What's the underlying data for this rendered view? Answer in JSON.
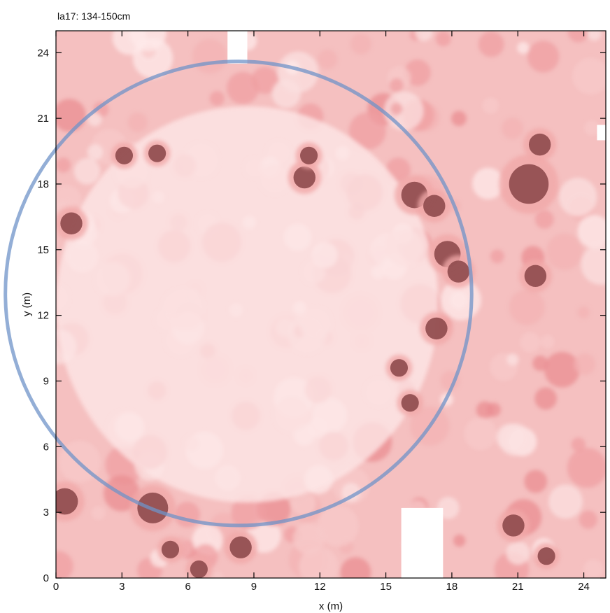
{
  "chart_data": {
    "type": "heatmap",
    "title": "la17: 134-150cm",
    "xlabel": "x (m)",
    "ylabel": "y (m)",
    "xlim": [
      0,
      25
    ],
    "ylim": [
      0,
      25
    ],
    "x_ticks": [
      0,
      3,
      6,
      9,
      12,
      15,
      18,
      21,
      24
    ],
    "y_ticks": [
      0,
      3,
      6,
      9,
      12,
      15,
      18,
      21,
      24
    ],
    "grid": false,
    "colors": {
      "low": "#fde6e6",
      "mid": "#f1a8a8",
      "high": "#a75558",
      "highest": "#8e4a4d",
      "nodata": "#ffffff",
      "circle": "#6f93c8"
    },
    "dark_features": [
      {
        "x": 11.3,
        "y": 18.3,
        "r": 0.5
      },
      {
        "x": 11.5,
        "y": 19.3,
        "r": 0.4
      },
      {
        "x": 21.5,
        "y": 18.0,
        "r": 0.9
      },
      {
        "x": 22.0,
        "y": 19.8,
        "r": 0.5
      },
      {
        "x": 17.8,
        "y": 14.8,
        "r": 0.6
      },
      {
        "x": 18.3,
        "y": 14.0,
        "r": 0.5
      },
      {
        "x": 21.8,
        "y": 13.8,
        "r": 0.5
      },
      {
        "x": 16.3,
        "y": 17.5,
        "r": 0.6
      },
      {
        "x": 17.2,
        "y": 17.0,
        "r": 0.5
      },
      {
        "x": 17.3,
        "y": 11.4,
        "r": 0.5
      },
      {
        "x": 16.1,
        "y": 8.0,
        "r": 0.4
      },
      {
        "x": 15.6,
        "y": 9.6,
        "r": 0.4
      },
      {
        "x": 3.1,
        "y": 19.3,
        "r": 0.4
      },
      {
        "x": 4.6,
        "y": 19.4,
        "r": 0.4
      },
      {
        "x": 0.7,
        "y": 16.2,
        "r": 0.5
      },
      {
        "x": 0.4,
        "y": 3.5,
        "r": 0.6
      },
      {
        "x": 4.4,
        "y": 3.2,
        "r": 0.7
      },
      {
        "x": 8.4,
        "y": 1.4,
        "r": 0.5
      },
      {
        "x": 20.8,
        "y": 2.4,
        "r": 0.5
      },
      {
        "x": 22.3,
        "y": 1.0,
        "r": 0.4
      },
      {
        "x": 5.2,
        "y": 1.3,
        "r": 0.4
      },
      {
        "x": 6.5,
        "y": 0.4,
        "r": 0.4
      }
    ],
    "no_data_regions": [
      {
        "x0": 7.8,
        "x1": 8.7,
        "y0": 23.5,
        "y1": 25.0
      },
      {
        "x0": 15.7,
        "x1": 17.6,
        "y0": 0.0,
        "y1": 3.2
      },
      {
        "x0": 24.6,
        "x1": 25.0,
        "y0": 20.0,
        "y1": 20.7
      }
    ],
    "circle_overlay": {
      "cx": 8.3,
      "cy": 13.0,
      "r": 10.6
    }
  }
}
